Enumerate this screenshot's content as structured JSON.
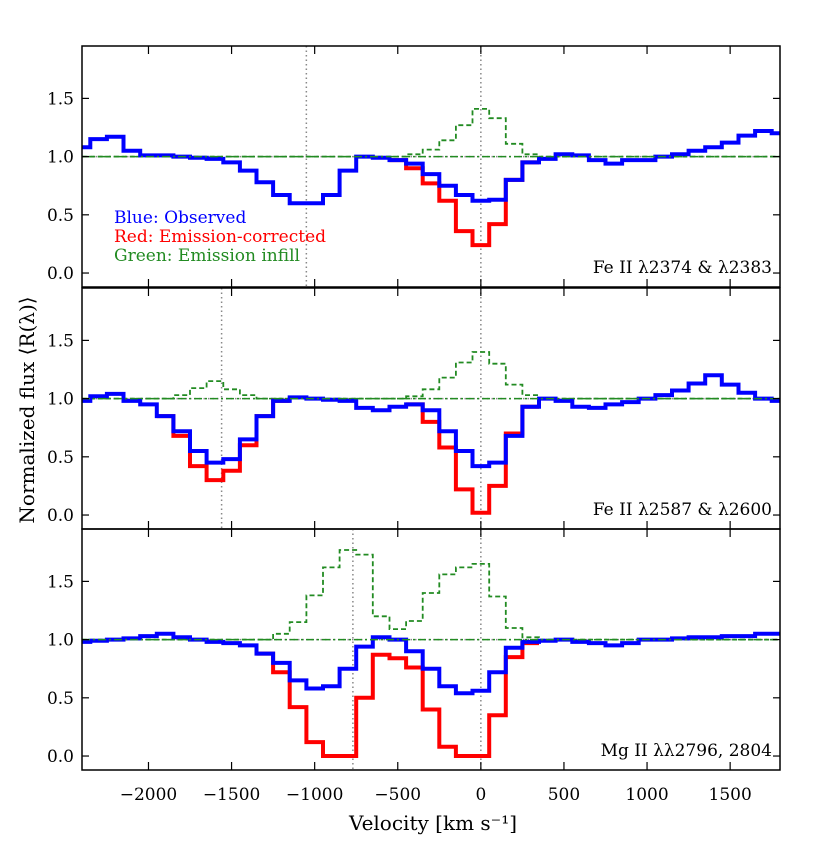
{
  "chart_data": {
    "type": "line",
    "style": "step",
    "xlabel": "Velocity [km s⁻¹]",
    "ylabel": "Normalized flux ⟨R(λ)⟩",
    "xlim": [
      -2400,
      1800
    ],
    "ylim": [
      -0.12,
      1.95
    ],
    "x_ticks": [
      -2000,
      -1500,
      -1000,
      -500,
      0,
      500,
      1000,
      1500
    ],
    "x_tick_labels": [
      "−2000",
      "−1500",
      "−1000",
      "−500",
      "0",
      "500",
      "1000",
      "1500"
    ],
    "y_ticks": [
      0.0,
      0.5,
      1.0,
      1.5
    ],
    "y_tick_labels": [
      "0.0",
      "0.5",
      "1.0",
      "1.5"
    ],
    "legend": [
      {
        "label": "Blue: Observed",
        "color": "#0000ff"
      },
      {
        "label": "Red: Emission-corrected",
        "color": "#ff0000"
      },
      {
        "label": "Green: Emission infill",
        "color": "#228b22"
      }
    ],
    "panels": [
      {
        "label": "Fe II λ2374 & λ2383",
        "vlines": [
          -1050,
          0
        ],
        "series": [
          {
            "name": "Observed",
            "color": "#0000ff",
            "x": [
              -2400,
              -2300,
              -2200,
              -2100,
              -2000,
              -1900,
              -1800,
              -1700,
              -1600,
              -1500,
              -1400,
              -1300,
              -1200,
              -1100,
              -1000,
              -900,
              -800,
              -700,
              -600,
              -500,
              -400,
              -300,
              -200,
              -100,
              0,
              100,
              200,
              300,
              400,
              500,
              600,
              700,
              800,
              900,
              1000,
              1100,
              1200,
              1300,
              1400,
              1500,
              1600,
              1700,
              1800
            ],
            "y": [
              1.08,
              1.15,
              1.17,
              1.05,
              1.01,
              1.01,
              1.0,
              0.99,
              0.98,
              0.95,
              0.88,
              0.78,
              0.67,
              0.6,
              0.6,
              0.67,
              0.88,
              1.0,
              0.99,
              0.97,
              0.94,
              0.85,
              0.75,
              0.67,
              0.62,
              0.63,
              0.8,
              0.95,
              0.98,
              1.02,
              1.01,
              0.97,
              0.94,
              0.97,
              0.97,
              1.0,
              1.02,
              1.05,
              1.08,
              1.12,
              1.18,
              1.22,
              1.2
            ]
          },
          {
            "name": "Emission-corrected",
            "color": "#ff0000",
            "x": [
              -500,
              -400,
              -300,
              -200,
              -100,
              0,
              100,
              200,
              300
            ],
            "y": [
              0.97,
              0.9,
              0.77,
              0.62,
              0.36,
              0.24,
              0.42,
              0.8,
              0.95
            ]
          },
          {
            "name": "Emission infill",
            "color": "#228b22",
            "x": [
              -2400,
              -500,
              -400,
              -300,
              -200,
              -100,
              0,
              100,
              200,
              300,
              400,
              1800
            ],
            "y": [
              1.0,
              1.0,
              1.02,
              1.06,
              1.14,
              1.27,
              1.41,
              1.33,
              1.11,
              1.02,
              1.0,
              1.0
            ]
          }
        ]
      },
      {
        "label": "Fe II λ2587 & λ2600",
        "vlines": [
          -1560,
          0
        ],
        "series": [
          {
            "name": "Observed",
            "color": "#0000ff",
            "x": [
              -2400,
              -2300,
              -2200,
              -2100,
              -2000,
              -1900,
              -1800,
              -1700,
              -1600,
              -1500,
              -1400,
              -1300,
              -1200,
              -1100,
              -1000,
              -900,
              -800,
              -700,
              -600,
              -500,
              -400,
              -300,
              -200,
              -100,
              0,
              100,
              200,
              300,
              400,
              500,
              600,
              700,
              800,
              900,
              1000,
              1100,
              1200,
              1300,
              1400,
              1500,
              1600,
              1700,
              1800
            ],
            "y": [
              0.98,
              1.02,
              1.04,
              0.98,
              0.95,
              0.85,
              0.72,
              0.55,
              0.45,
              0.48,
              0.65,
              0.85,
              0.98,
              1.01,
              1.0,
              0.99,
              0.98,
              0.92,
              0.9,
              0.93,
              0.95,
              0.9,
              0.72,
              0.55,
              0.42,
              0.45,
              0.68,
              0.93,
              1.0,
              0.98,
              0.93,
              0.92,
              0.95,
              0.97,
              1.0,
              1.03,
              1.07,
              1.13,
              1.2,
              1.12,
              1.05,
              1.0,
              0.98
            ]
          },
          {
            "name": "Emission-corrected",
            "color": "#ff0000",
            "x": [
              -1900,
              -1800,
              -1700,
              -1600,
              -1500,
              -1400,
              -1300,
              -1200
            ],
            "y": [
              0.85,
              0.68,
              0.42,
              0.3,
              0.38,
              0.6,
              0.85,
              0.98
            ]
          },
          {
            "name": "Emission-corrected",
            "color": "#ff0000",
            "x": [
              -400,
              -300,
              -200,
              -100,
              0,
              100,
              200,
              300
            ],
            "y": [
              0.95,
              0.8,
              0.58,
              0.22,
              0.02,
              0.25,
              0.7,
              0.93
            ]
          },
          {
            "name": "Emission infill",
            "color": "#228b22",
            "x": [
              -2400,
              -1900,
              -1800,
              -1700,
              -1600,
              -1500,
              -1400,
              -1300,
              -500,
              -400,
              -300,
              -200,
              -100,
              0,
              100,
              200,
              300,
              400,
              1800
            ],
            "y": [
              1.0,
              1.0,
              1.03,
              1.09,
              1.15,
              1.08,
              1.03,
              1.0,
              1.0,
              1.02,
              1.08,
              1.18,
              1.31,
              1.4,
              1.3,
              1.12,
              1.03,
              1.0,
              1.0
            ]
          }
        ]
      },
      {
        "label": "Mg II λλ2796, 2804",
        "vlines": [
          -770,
          0
        ],
        "series": [
          {
            "name": "Observed",
            "color": "#0000ff",
            "x": [
              -2400,
              -2300,
              -2200,
              -2100,
              -2000,
              -1900,
              -1800,
              -1700,
              -1600,
              -1500,
              -1400,
              -1300,
              -1200,
              -1100,
              -1000,
              -900,
              -800,
              -700,
              -600,
              -500,
              -400,
              -300,
              -200,
              -100,
              0,
              100,
              200,
              300,
              400,
              500,
              600,
              700,
              800,
              900,
              1000,
              1100,
              1200,
              1300,
              1400,
              1500,
              1600,
              1700,
              1800
            ],
            "y": [
              0.98,
              0.99,
              1.0,
              1.01,
              1.03,
              1.05,
              1.02,
              1.0,
              0.98,
              0.97,
              0.95,
              0.88,
              0.8,
              0.65,
              0.58,
              0.6,
              0.75,
              0.94,
              1.02,
              1.0,
              0.9,
              0.75,
              0.6,
              0.54,
              0.56,
              0.72,
              0.93,
              0.98,
              0.99,
              1.0,
              0.98,
              0.97,
              0.95,
              0.97,
              1.0,
              1.0,
              1.01,
              1.02,
              1.02,
              1.03,
              1.03,
              1.05,
              1.05
            ]
          },
          {
            "name": "Emission-corrected",
            "color": "#ff0000",
            "x": [
              -1300,
              -1200,
              -1100,
              -1000,
              -900,
              -800,
              -700,
              -600,
              -500,
              -400,
              -300,
              -200,
              -100,
              0,
              100,
              200,
              300
            ],
            "y": [
              0.88,
              0.72,
              0.42,
              0.12,
              0.0,
              0.0,
              0.5,
              0.87,
              0.84,
              0.76,
              0.4,
              0.08,
              0.0,
              0.0,
              0.35,
              0.85,
              0.97
            ]
          },
          {
            "name": "Emission infill",
            "color": "#228b22",
            "x": [
              -2400,
              -1300,
              -1200,
              -1100,
              -1000,
              -900,
              -800,
              -700,
              -600,
              -500,
              -400,
              -300,
              -200,
              -100,
              0,
              100,
              200,
              300,
              400,
              1800
            ],
            "y": [
              1.0,
              1.0,
              1.05,
              1.15,
              1.38,
              1.62,
              1.77,
              1.73,
              1.2,
              1.09,
              1.16,
              1.4,
              1.56,
              1.62,
              1.65,
              1.37,
              1.1,
              1.02,
              1.0,
              1.0
            ]
          }
        ]
      }
    ]
  }
}
